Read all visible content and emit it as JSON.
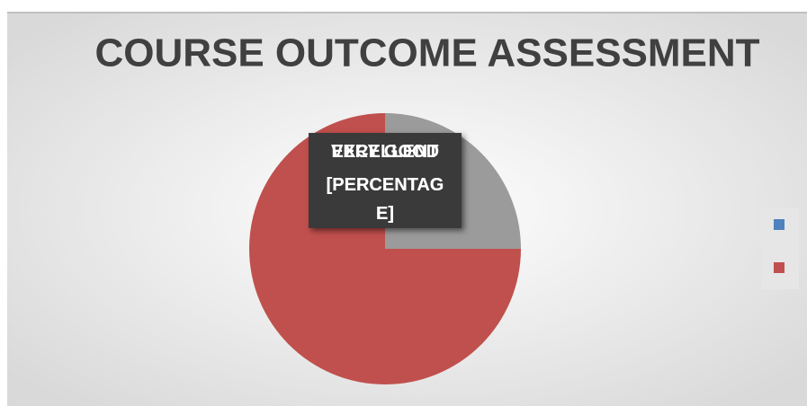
{
  "chart_data": {
    "type": "pie",
    "title": "COURSE OUTCOME ASSESSMENT",
    "categories": [
      "EXCELLENT",
      "VERY GOOD"
    ],
    "values": [
      25,
      75
    ],
    "value_labels": [
      "[PERCENTAGE]",
      "[PERCENTAGE]"
    ],
    "colors": [
      "#9b9b9b",
      "#c0504d"
    ],
    "legend_colors": [
      "#4f81bd",
      "#c0504d"
    ]
  }
}
